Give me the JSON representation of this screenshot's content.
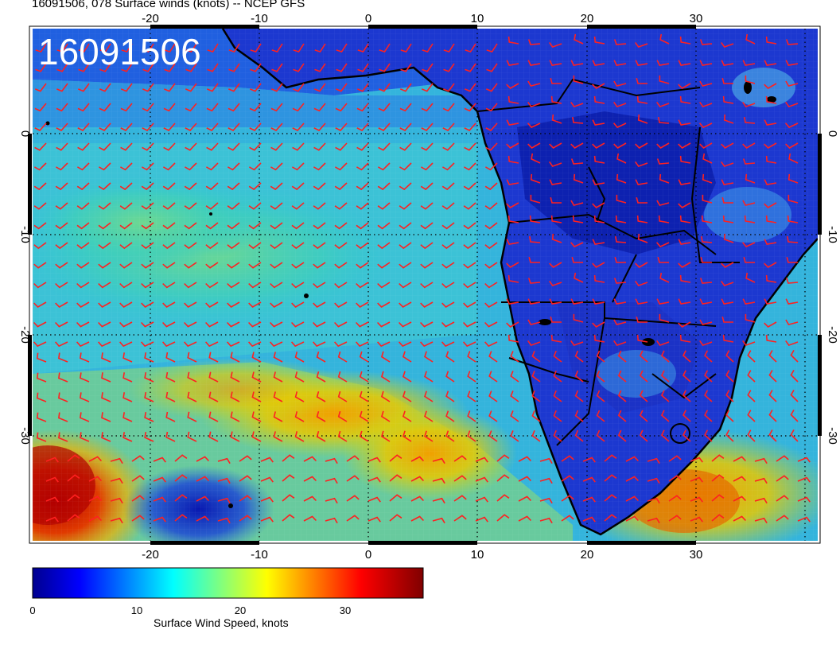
{
  "title": "16091506, 078 Surface winds (knots) -- NCEP GFS",
  "date_stamp": "16091506",
  "map": {
    "region": "South Atlantic and Southern Africa",
    "lon_range": [
      -31,
      41
    ],
    "lat_range": [
      -40,
      10
    ],
    "lon_ticks": [
      "-20",
      "-10",
      "0",
      "10",
      "20",
      "30"
    ],
    "lat_ticks": [
      "0",
      "-10",
      "-20",
      "-30"
    ],
    "gridlines": "dotted",
    "barb_color": "#ff2020"
  },
  "colorbar": {
    "title": "Surface Wind Speed, knots",
    "min": 0,
    "max": 36,
    "ticks": [
      "0",
      "10",
      "20",
      "30"
    ],
    "colormap": "jet"
  }
}
